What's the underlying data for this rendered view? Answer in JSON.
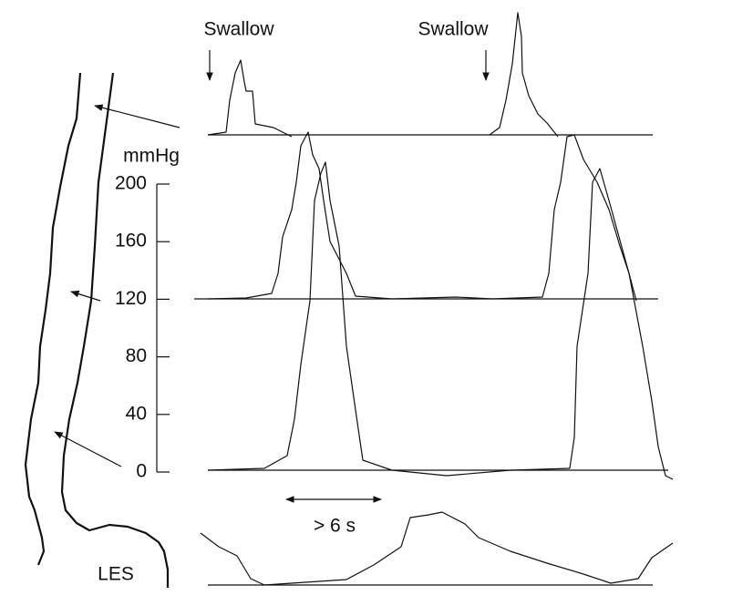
{
  "labels": {
    "swallow_1": "Swallow",
    "swallow_2": "Swallow",
    "unit": "mmHg",
    "duration": "> 6 s",
    "sphincter": "LES"
  },
  "axis": {
    "ticks": [
      200,
      160,
      120,
      80,
      40,
      0
    ]
  }
}
